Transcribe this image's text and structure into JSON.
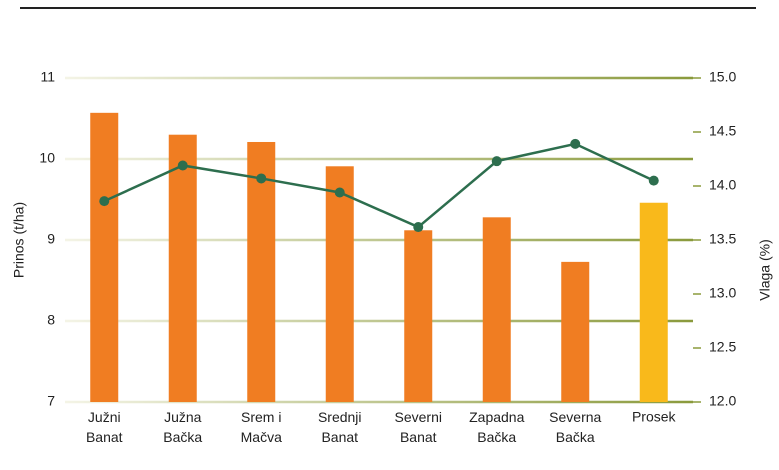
{
  "chart_data": {
    "type": "bar",
    "categories": [
      "Južni Banat",
      "Južna Bačka",
      "Srem i Mačva",
      "Srednji Banat",
      "Severni Banat",
      "Zapadna Bačka",
      "Severna Bačka",
      "Prosek"
    ],
    "ylabel": "Prinos (t/ha)",
    "y2label": "Vlaga (%)",
    "ylim": [
      7,
      11
    ],
    "yticks": [
      7,
      8,
      9,
      10,
      11
    ],
    "y2lim": [
      12,
      15
    ],
    "y2ticks": [
      {
        "value": 12,
        "label": "12.0"
      },
      {
        "value": 12.5,
        "label": "12.5"
      },
      {
        "value": 13,
        "label": "13.0"
      },
      {
        "value": 13.5,
        "label": "13.5"
      },
      {
        "value": 14,
        "label": "14.0"
      },
      {
        "value": 14.5,
        "label": "14.5"
      },
      {
        "value": 15,
        "label": "15.0"
      }
    ],
    "grid": true,
    "series": [
      {
        "type": "bar",
        "colors": [
          "#f07d22",
          "#f07d22",
          "#f07d22",
          "#f07d22",
          "#f07d22",
          "#f07d22",
          "#f07d22",
          "#f9b91b"
        ],
        "values": [
          10.57,
          10.3,
          10.21,
          9.91,
          9.12,
          9.28,
          8.73,
          9.46
        ]
      },
      {
        "type": "line",
        "axis": "y2",
        "color": "#2d6e4e",
        "values": [
          13.86,
          14.19,
          14.07,
          13.94,
          13.62,
          14.23,
          14.39,
          14.05
        ]
      }
    ]
  }
}
